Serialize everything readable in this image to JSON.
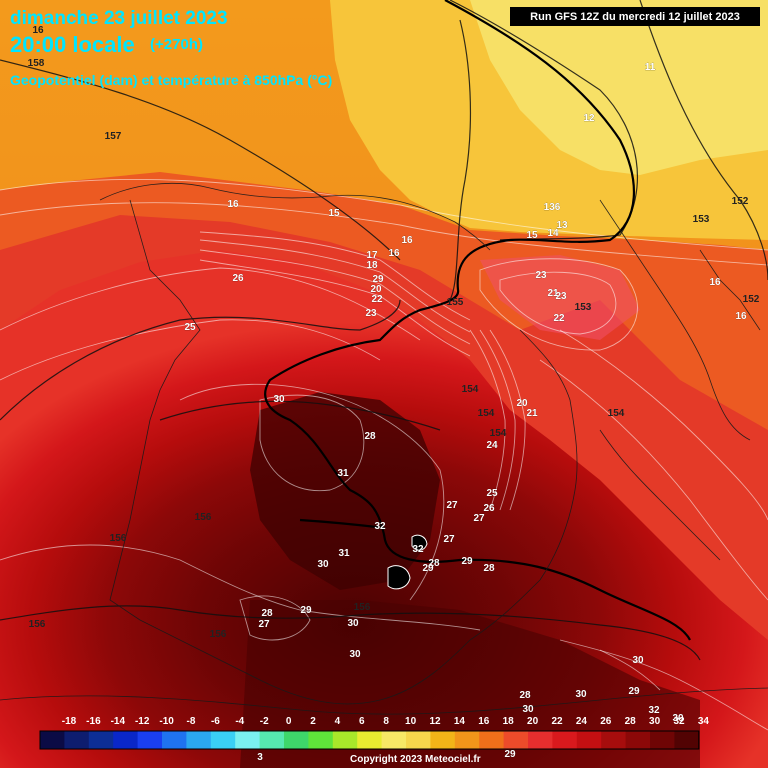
{
  "header": {
    "date": "dimanche 23 juillet 2023",
    "time": "20:00 locale",
    "offset": "(+270h)",
    "subtitle": "Geopotentiel (dam) et température à 850hPa (°C)",
    "run": "Run GFS 12Z du mercredi 12 juillet 2023"
  },
  "footer": {
    "copyright": "Copyright 2023 Meteociel.fr"
  },
  "legend": {
    "ticks": [
      "-18",
      "-16",
      "-14",
      "-12",
      "-10",
      "-8",
      "-6",
      "-4",
      "-2",
      "0",
      "2",
      "4",
      "6",
      "8",
      "10",
      "12",
      "14",
      "16",
      "18",
      "20",
      "22",
      "24",
      "26",
      "28",
      "30",
      "32",
      "34"
    ],
    "colors": [
      "#0b0b45",
      "#0e1d6f",
      "#0d2e96",
      "#0a27c8",
      "#1a3ff0",
      "#1f73f0",
      "#2ba8f0",
      "#3ad0f5",
      "#7af0f0",
      "#56e8b0",
      "#3ed76a",
      "#5fe33a",
      "#a8e82a",
      "#e8ec30",
      "#f7e866",
      "#f6d64c",
      "#f2b418",
      "#f1951a",
      "#ef6f1a",
      "#ec4b2a",
      "#e62e2e",
      "#d9191d",
      "#c40f12",
      "#a60d0d",
      "#8c0808",
      "#6f0505",
      "#520303"
    ]
  },
  "contour_labels": [
    {
      "t": "16",
      "k": "gph"
    },
    {
      "t": "158",
      "k": "gph"
    },
    {
      "t": "157",
      "k": "gph"
    },
    {
      "t": "11",
      "k": "t"
    },
    {
      "t": "12",
      "k": "t"
    },
    {
      "t": "16",
      "k": "t"
    },
    {
      "t": "15",
      "k": "t"
    },
    {
      "t": "136",
      "k": "t"
    },
    {
      "t": "13",
      "k": "t"
    },
    {
      "t": "14",
      "k": "t"
    },
    {
      "t": "15",
      "k": "t"
    },
    {
      "t": "153",
      "k": "gph"
    },
    {
      "t": "152",
      "k": "gph"
    },
    {
      "t": "17",
      "k": "t"
    },
    {
      "t": "18",
      "k": "t"
    },
    {
      "t": "16",
      "k": "t"
    },
    {
      "t": "16",
      "k": "t"
    },
    {
      "t": "29",
      "k": "t"
    },
    {
      "t": "20",
      "k": "t"
    },
    {
      "t": "22",
      "k": "t"
    },
    {
      "t": "155",
      "k": "gph"
    },
    {
      "t": "23",
      "k": "t"
    },
    {
      "t": "26",
      "k": "t"
    },
    {
      "t": "25",
      "k": "t"
    },
    {
      "t": "21",
      "k": "t"
    },
    {
      "t": "23",
      "k": "t"
    },
    {
      "t": "23",
      "k": "t"
    },
    {
      "t": "153",
      "k": "gph"
    },
    {
      "t": "22",
      "k": "t"
    },
    {
      "t": "16",
      "k": "t"
    },
    {
      "t": "152",
      "k": "gph"
    },
    {
      "t": "16",
      "k": "t"
    },
    {
      "t": "30",
      "k": "t"
    },
    {
      "t": "154",
      "k": "gph"
    },
    {
      "t": "154",
      "k": "gph"
    },
    {
      "t": "20",
      "k": "t"
    },
    {
      "t": "21",
      "k": "t"
    },
    {
      "t": "154",
      "k": "gph"
    },
    {
      "t": "154",
      "k": "gph"
    },
    {
      "t": "28",
      "k": "t"
    },
    {
      "t": "24",
      "k": "t"
    },
    {
      "t": "31",
      "k": "t"
    },
    {
      "t": "25",
      "k": "t"
    },
    {
      "t": "27",
      "k": "t"
    },
    {
      "t": "26",
      "k": "t"
    },
    {
      "t": "27",
      "k": "t"
    },
    {
      "t": "156",
      "k": "gph"
    },
    {
      "t": "32",
      "k": "t"
    },
    {
      "t": "156",
      "k": "gph"
    },
    {
      "t": "27",
      "k": "t"
    },
    {
      "t": "32",
      "k": "t"
    },
    {
      "t": "31",
      "k": "t"
    },
    {
      "t": "30",
      "k": "t"
    },
    {
      "t": "28",
      "k": "t"
    },
    {
      "t": "29",
      "k": "t"
    },
    {
      "t": "29",
      "k": "t"
    },
    {
      "t": "28",
      "k": "t"
    },
    {
      "t": "28",
      "k": "t"
    },
    {
      "t": "27",
      "k": "t"
    },
    {
      "t": "29",
      "k": "t"
    },
    {
      "t": "156",
      "k": "gph"
    },
    {
      "t": "30",
      "k": "t"
    },
    {
      "t": "30",
      "k": "t"
    },
    {
      "t": "156",
      "k": "gph"
    },
    {
      "t": "156",
      "k": "gph"
    },
    {
      "t": "30",
      "k": "t"
    },
    {
      "t": "28",
      "k": "t"
    },
    {
      "t": "30",
      "k": "t"
    },
    {
      "t": "29",
      "k": "t"
    },
    {
      "t": "30",
      "k": "t"
    },
    {
      "t": "32",
      "k": "t"
    },
    {
      "t": "30",
      "k": "t"
    },
    {
      "t": "31",
      "k": "t"
    },
    {
      "t": "29",
      "k": "t"
    },
    {
      "t": "3",
      "k": "t"
    }
  ]
}
